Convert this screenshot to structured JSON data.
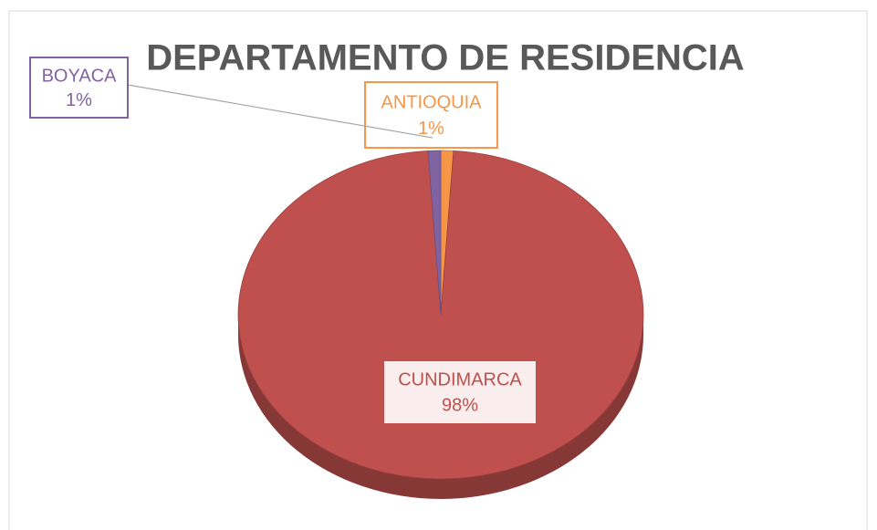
{
  "chart_data": {
    "type": "pie",
    "title": "DEPARTAMENTO DE RESIDENCIA",
    "categories": [
      "ANTIOQUIA",
      "CUNDIMARCA",
      "BOYACA"
    ],
    "values": [
      1,
      98,
      1
    ],
    "value_labels": [
      "1%",
      "98%",
      "1%"
    ],
    "colors": [
      "#f79646",
      "#c0504d",
      "#8064a2"
    ]
  }
}
